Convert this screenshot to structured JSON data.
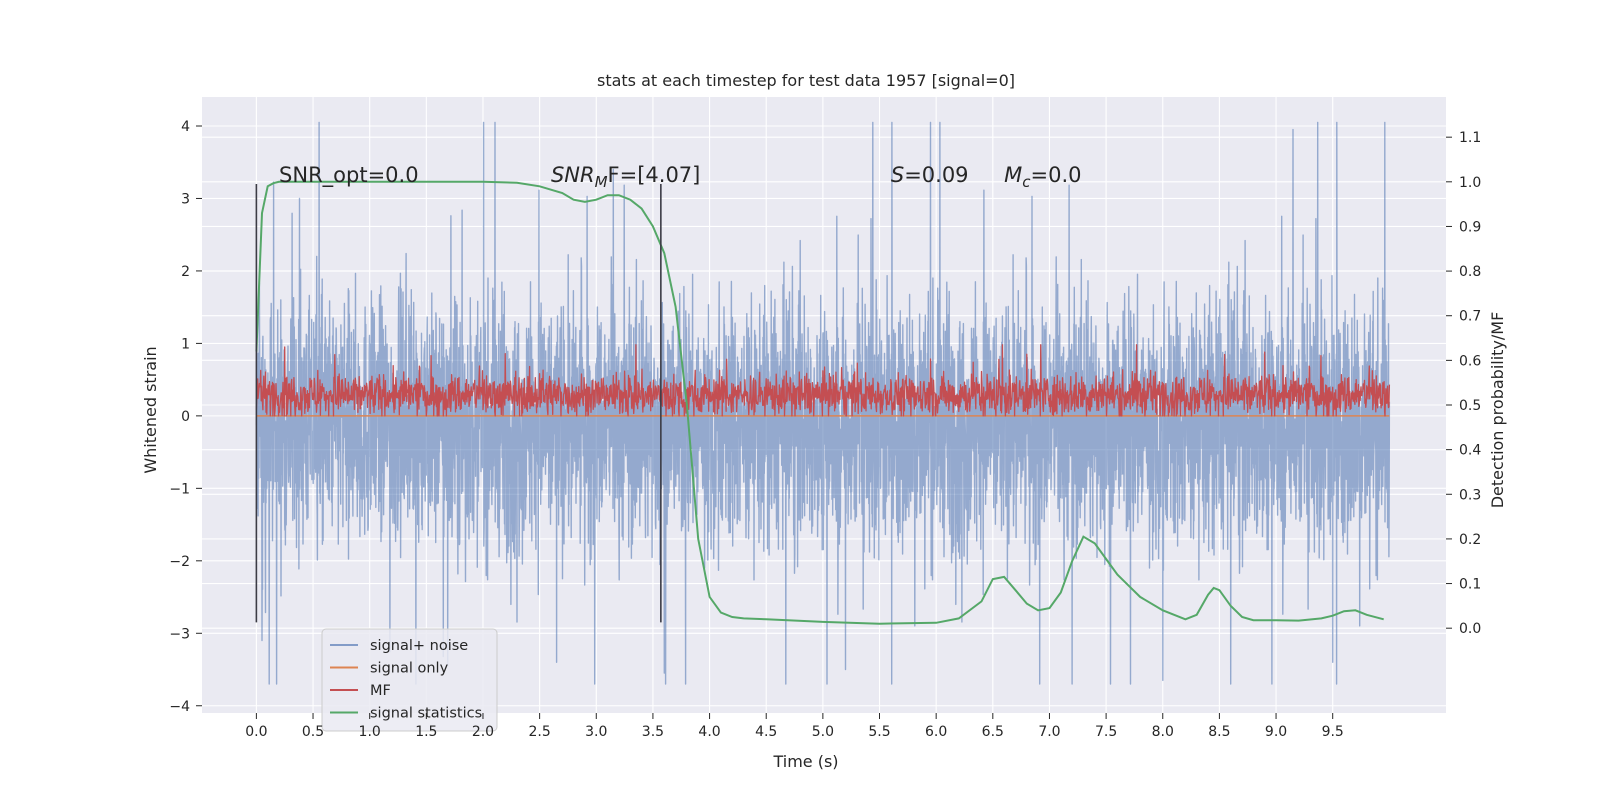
{
  "chart_data": {
    "type": "line",
    "title": "stats at each timestep for test data 1957 [signal=0]",
    "xlabel": "Time (s)",
    "ylabel": "Whitened strain",
    "y2label": "Detection probability/MF",
    "xlim": [
      -0.48,
      10.5
    ],
    "ylim": [
      -4.1,
      4.4
    ],
    "y2lim": [
      -0.19,
      1.19
    ],
    "xticks": [
      0.0,
      0.5,
      1.0,
      1.5,
      2.0,
      2.5,
      3.0,
      3.5,
      4.0,
      4.5,
      5.0,
      5.5,
      6.0,
      6.5,
      7.0,
      7.5,
      8.0,
      8.5,
      9.0,
      9.5
    ],
    "xtick_labels": [
      "0.0",
      "0.5",
      "1.0",
      "1.5",
      "2.0",
      "2.5",
      "3.0",
      "3.5",
      "4.0",
      "4.5",
      "5.0",
      "5.5",
      "6.0",
      "6.5",
      "7.0",
      "7.5",
      "8.0",
      "8.5",
      "9.0",
      "9.5"
    ],
    "yticks": [
      4,
      3,
      2,
      1,
      0,
      -1,
      -2,
      -3,
      -4
    ],
    "ytick_labels": [
      "4",
      "3",
      "2",
      "1",
      "0",
      "−1",
      "−2",
      "−3",
      "−4"
    ],
    "y2ticks": [
      1.1,
      1.0,
      0.9,
      0.8,
      0.7,
      0.6,
      0.5,
      0.4,
      0.3,
      0.2,
      0.1,
      0.0
    ],
    "y2tick_labels": [
      "1.1",
      "1.0",
      "0.9",
      "0.8",
      "0.7",
      "0.6",
      "0.5",
      "0.4",
      "0.3",
      "0.2",
      "0.1",
      "0.0"
    ],
    "grid": true,
    "legend_position": "lower-left",
    "annotations": [
      {
        "id": "snr-opt",
        "text": "SNR_opt=0.0",
        "x": 0.2,
        "y": 3.2
      },
      {
        "id": "snr-mf",
        "html_parts": [
          "SNR",
          "M",
          "F=[4.07]"
        ],
        "x": 2.6,
        "y": 3.2
      },
      {
        "id": "s-value",
        "html_parts": [
          "S",
          "=0.09"
        ],
        "x": 5.6,
        "y": 3.2
      },
      {
        "id": "mc-value",
        "html_parts": [
          "M",
          "c",
          "=0.0"
        ],
        "x": 6.6,
        "y": 3.2
      }
    ],
    "markers": [
      {
        "x": 0.0,
        "y_from": -2.85,
        "y_to": 3.2
      },
      {
        "x": 3.57,
        "y_from": -2.85,
        "y_to": 3.2
      }
    ],
    "series": [
      {
        "name": "signal+ noise",
        "axis": "left",
        "color": "#4c72b0",
        "opacity": 0.55,
        "style": "dense-noise",
        "x_range": [
          0.0,
          10.0
        ],
        "typical_range": [
          -1.6,
          1.4
        ],
        "extreme_range": [
          -3.7,
          4.05
        ],
        "peaks": [
          {
            "x": 0.38,
            "y": 3.0
          },
          {
            "x": 2.65,
            "y": 3.3
          },
          {
            "x": 3.15,
            "y": 3.4
          },
          {
            "x": 5.95,
            "y": 4.05
          },
          {
            "x": 9.15,
            "y": 3.95
          },
          {
            "x": 9.5,
            "y": 3.6
          },
          {
            "x": 3.6,
            "y": -3.55
          },
          {
            "x": 5.2,
            "y": -3.5
          },
          {
            "x": 7.2,
            "y": -3.7
          },
          {
            "x": 8.0,
            "y": -3.65
          },
          {
            "x": 0.05,
            "y": -3.1
          },
          {
            "x": 2.65,
            "y": -3.4
          },
          {
            "x": 9.5,
            "y": -3.4
          }
        ]
      },
      {
        "name": "signal only",
        "axis": "left",
        "color": "#dd8452",
        "x": [
          0.0,
          10.0
        ],
        "y": [
          0.0,
          0.0
        ]
      },
      {
        "name": "MF",
        "axis": "left",
        "color": "#c44e52",
        "style": "dense-noise",
        "x_range": [
          0.0,
          10.0
        ],
        "typical_range": [
          0.03,
          0.55
        ],
        "extreme_range": [
          0.0,
          0.98
        ],
        "peaks": [
          {
            "x": 0.25,
            "y": 0.95
          },
          {
            "x": 3.35,
            "y": 0.98
          },
          {
            "x": 4.15,
            "y": 0.78
          },
          {
            "x": 6.8,
            "y": 0.85
          },
          {
            "x": 8.9,
            "y": 0.88
          }
        ]
      },
      {
        "name": "signal statistics",
        "axis": "right",
        "color": "#55a868",
        "x": [
          0.0,
          0.05,
          0.1,
          0.15,
          0.2,
          0.3,
          0.5,
          1.0,
          1.5,
          2.0,
          2.3,
          2.5,
          2.7,
          2.8,
          2.9,
          3.0,
          3.1,
          3.2,
          3.3,
          3.4,
          3.5,
          3.6,
          3.7,
          3.8,
          3.9,
          4.0,
          4.1,
          4.2,
          4.3,
          4.5,
          5.0,
          5.5,
          6.0,
          6.2,
          6.4,
          6.5,
          6.6,
          6.7,
          6.8,
          6.9,
          7.0,
          7.1,
          7.2,
          7.3,
          7.4,
          7.5,
          7.6,
          7.7,
          7.8,
          8.0,
          8.2,
          8.3,
          8.4,
          8.45,
          8.5,
          8.6,
          8.7,
          8.8,
          9.0,
          9.2,
          9.4,
          9.5,
          9.6,
          9.7,
          9.8,
          9.95
        ],
        "y": [
          0.62,
          0.93,
          0.99,
          0.997,
          1.0,
          1.0,
          1.0,
          1.0,
          1.0,
          1.0,
          0.998,
          0.99,
          0.975,
          0.96,
          0.955,
          0.96,
          0.97,
          0.97,
          0.96,
          0.94,
          0.9,
          0.84,
          0.72,
          0.5,
          0.2,
          0.07,
          0.035,
          0.025,
          0.022,
          0.02,
          0.014,
          0.01,
          0.012,
          0.022,
          0.06,
          0.11,
          0.115,
          0.085,
          0.055,
          0.04,
          0.045,
          0.08,
          0.15,
          0.205,
          0.19,
          0.155,
          0.12,
          0.095,
          0.07,
          0.04,
          0.02,
          0.03,
          0.075,
          0.09,
          0.085,
          0.05,
          0.025,
          0.018,
          0.018,
          0.017,
          0.022,
          0.028,
          0.038,
          0.04,
          0.03,
          0.02
        ]
      }
    ]
  }
}
